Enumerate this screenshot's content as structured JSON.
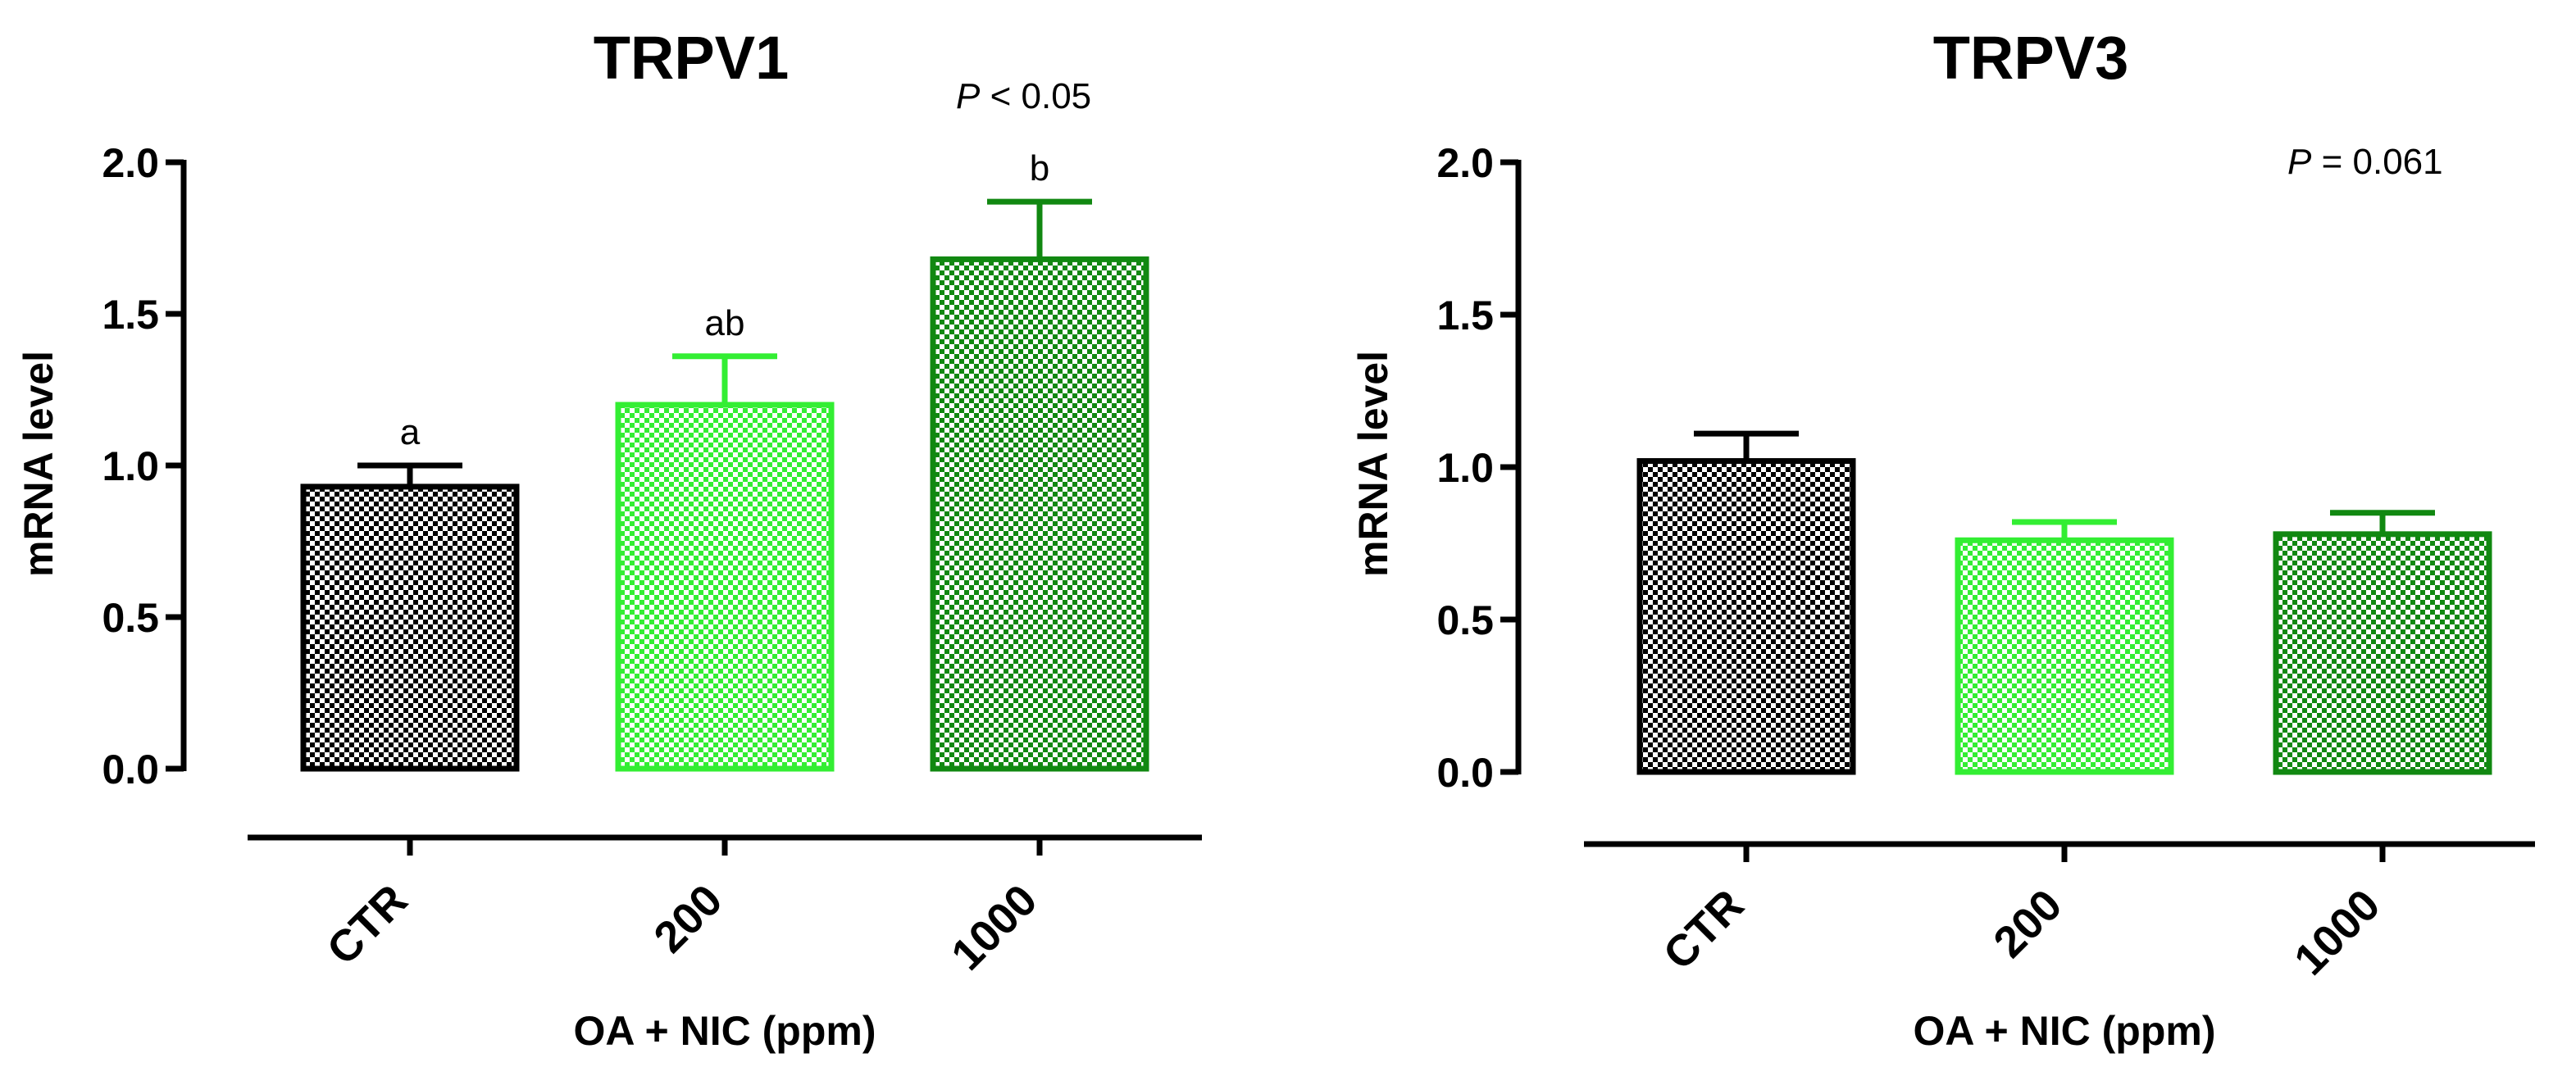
{
  "chart_data": [
    {
      "type": "bar",
      "title": "TRPV1",
      "xlabel": "OA + NIC (ppm)",
      "ylabel": "mRNA level",
      "categories": [
        "CTR",
        "200",
        "1000"
      ],
      "values": [
        0.93,
        1.2,
        1.68
      ],
      "errors": [
        0.07,
        0.16,
        0.19
      ],
      "letters": [
        "a",
        "ab",
        "b"
      ],
      "yticks": [
        "0.0",
        "0.5",
        "1.0",
        "1.5",
        "2.0"
      ],
      "ylim": [
        0,
        2.0
      ],
      "p_prefix": "P",
      "p_text": " < 0.05",
      "colors": [
        "#000000",
        "#33ee33",
        "#118811"
      ]
    },
    {
      "type": "bar",
      "title": "TRPV3",
      "xlabel": "OA + NIC (ppm)",
      "ylabel": "mRNA level",
      "categories": [
        "CTR",
        "200",
        "1000"
      ],
      "values": [
        1.02,
        0.76,
        0.78
      ],
      "errors": [
        0.09,
        0.06,
        0.07
      ],
      "letters": [
        "",
        "",
        ""
      ],
      "yticks": [
        "0.0",
        "0.5",
        "1.0",
        "1.5",
        "2.0"
      ],
      "ylim": [
        0,
        2.0
      ],
      "p_prefix": "P",
      "p_text": " = 0.061",
      "colors": [
        "#000000",
        "#33ee33",
        "#118811"
      ]
    }
  ]
}
